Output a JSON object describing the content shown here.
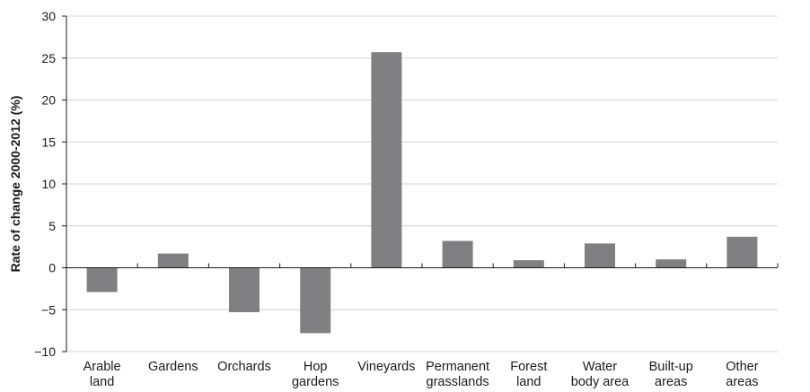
{
  "chart_data": {
    "type": "bar",
    "categories": [
      [
        "Arable",
        "land"
      ],
      [
        "Gardens"
      ],
      [
        "Orchards"
      ],
      [
        "Hop",
        "gardens"
      ],
      [
        "Vineyards"
      ],
      [
        "Permanent",
        "grasslands"
      ],
      [
        "Forest",
        "land"
      ],
      [
        "Water",
        "body area"
      ],
      [
        "Built-up",
        "areas"
      ],
      [
        "Other",
        "areas"
      ]
    ],
    "values": [
      -2.9,
      1.7,
      -5.3,
      -7.8,
      25.7,
      3.2,
      0.9,
      2.9,
      1.0,
      3.7
    ],
    "title": "",
    "xlabel": "",
    "ylabel": "Rate of change 2000-2012 (%)",
    "ylim": [
      -10,
      30
    ],
    "yticks": [
      30,
      25,
      20,
      15,
      10,
      5,
      0,
      -5,
      -10
    ],
    "ytick_labels": [
      "30",
      "25",
      "20",
      "15",
      "10",
      "5",
      "0",
      "−5",
      "−10"
    ],
    "grid": true,
    "legend": "none",
    "bar_color": "#808082"
  }
}
